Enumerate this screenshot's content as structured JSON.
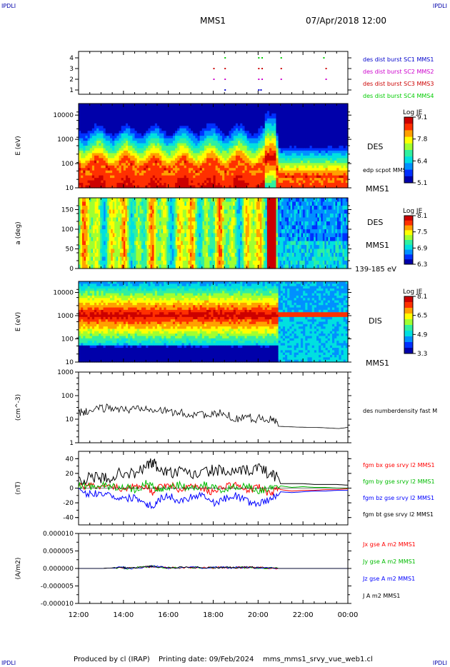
{
  "header": {
    "corner_tl": "IPDLI",
    "corner_tr": "IPDLI",
    "mission": "MMS1",
    "datetime": "07/Apr/2018 12:00"
  },
  "footer": {
    "produced_by": "Produced by cl (IRAP)",
    "printing_date": "Printing date: 09/Feb/2024",
    "product": "mms_mms1_srvy_vue_web1.cl",
    "corner_bl": "IPDLI",
    "corner_br": "IPDLI"
  },
  "colors": {
    "axis": "#000000",
    "spec_scale": [
      "#0000aa",
      "#0030ff",
      "#0090ff",
      "#00e0e0",
      "#30f0a0",
      "#a0ff30",
      "#ffff00",
      "#ffa000",
      "#ff3000",
      "#cc0000"
    ],
    "sc1": "#0000cc",
    "sc2": "#cc00cc",
    "sc3": "#cc0000",
    "sc4": "#00cc00",
    "bx": "#ff0000",
    "by": "#00bb00",
    "bz": "#0000ff",
    "bt": "#000000"
  },
  "chart_data": [
    {
      "panel": "burst",
      "type": "scatter",
      "ylabel": "",
      "yticks": [
        "1",
        "2",
        "3",
        "4"
      ],
      "legend": [
        {
          "label": "des dist burst SC1 MMS1",
          "color": "#0000cc"
        },
        {
          "label": "des dist burst SC2 MMS2",
          "color": "#cc00cc"
        },
        {
          "label": "des dist burst SC3 MMS3",
          "color": "#cc0000"
        },
        {
          "label": "des dist burst SC4 MMS4",
          "color": "#00cc00"
        }
      ],
      "series": [
        {
          "spacecraft": 1,
          "hours": [
            18.5,
            20.0,
            20.1
          ]
        },
        {
          "spacecraft": 2,
          "hours": [
            18.0,
            18.5,
            20.0,
            20.15,
            21.0,
            23.0
          ]
        },
        {
          "spacecraft": 3,
          "hours": [
            18.0,
            18.5,
            20.0,
            20.15,
            21.0,
            23.0
          ]
        },
        {
          "spacecraft": 4,
          "hours": [
            18.5,
            20.0,
            20.15,
            21.0,
            22.9
          ]
        }
      ]
    },
    {
      "panel": "des-energy",
      "type": "heatmap",
      "ylabel": "E (eV)",
      "yticks": [
        "10",
        "100",
        "1000",
        "10000"
      ],
      "scale": "log",
      "ylim": [
        10,
        30000
      ],
      "right_labels": [
        "DES",
        "edp scpot MMS1",
        "MMS1"
      ],
      "colorbar": {
        "title": "Log JE",
        "ticks": [
          "9.1",
          "7.8",
          "6.4",
          "5.1"
        ]
      }
    },
    {
      "panel": "des-pitch",
      "type": "heatmap",
      "ylabel": "a (deg)",
      "yticks": [
        "0",
        "50",
        "100",
        "150"
      ],
      "ylim": [
        0,
        180
      ],
      "right_labels": [
        "DES",
        "MMS1",
        "139-185 eV"
      ],
      "colorbar": {
        "title": "Log JE",
        "ticks": [
          "8.1",
          "7.5",
          "6.9",
          "6.3"
        ]
      }
    },
    {
      "panel": "dis-energy",
      "type": "heatmap",
      "ylabel": "E (eV)",
      "yticks": [
        "10",
        "100",
        "1000",
        "10000"
      ],
      "scale": "log",
      "ylim": [
        10,
        30000
      ],
      "right_labels": [
        "DIS",
        "MMS1"
      ],
      "colorbar": {
        "title": "Log JE",
        "ticks": [
          "8.1",
          "6.5",
          "4.9",
          "3.3"
        ]
      }
    },
    {
      "panel": "density",
      "type": "line",
      "ylabel": "(cm^-3)",
      "yticks": [
        "1",
        "10",
        "100",
        "1000"
      ],
      "scale": "log",
      "ylim": [
        1,
        1000
      ],
      "legend": [
        {
          "label": "des numberdensity fast M",
          "color": "#000000"
        }
      ],
      "hours": [
        12.0,
        12.3,
        12.6,
        13.0,
        13.4,
        13.8,
        14.2,
        14.6,
        15.0,
        15.4,
        15.8,
        16.2,
        16.6,
        17.0,
        17.4,
        17.8,
        18.2,
        18.6,
        19.0,
        19.4,
        19.8,
        20.2,
        20.6,
        20.85,
        20.9,
        21.3,
        21.8,
        22.3,
        22.8,
        23.2,
        23.6,
        24.0
      ],
      "values": [
        18,
        21,
        23,
        28,
        32,
        27,
        24,
        30,
        33,
        28,
        22,
        20,
        18,
        15,
        20,
        12,
        18,
        15,
        10,
        14,
        10,
        12,
        9,
        8,
        5,
        4.8,
        4.6,
        4.5,
        4.4,
        4.2,
        4.0,
        4.5
      ]
    },
    {
      "panel": "magnetic-field",
      "type": "line",
      "ylabel": "(nT)",
      "yticks": [
        "-40",
        "-20",
        "0",
        "20",
        "40"
      ],
      "ylim": [
        -50,
        50
      ],
      "legend": [
        {
          "label": "fgm bx gse srvy l2 MMS1",
          "color": "#ff0000"
        },
        {
          "label": "fgm by gse srvy l2 MMS1",
          "color": "#00bb00"
        },
        {
          "label": "fgm bz gse srvy l2 MMS1",
          "color": "#0000ff"
        },
        {
          "label": "fgm bt gse srvy l2 MMS1",
          "color": "#000000"
        }
      ],
      "hours": [
        12.0,
        12.5,
        13.0,
        13.5,
        14.0,
        14.5,
        15.0,
        15.3,
        15.6,
        16.0,
        16.5,
        17.0,
        17.5,
        18.0,
        18.5,
        19.0,
        19.5,
        20.0,
        20.5,
        20.9,
        21.0,
        21.5,
        22.0,
        22.5,
        23.0,
        23.5,
        24.0
      ],
      "series": [
        {
          "name": "bx",
          "values": [
            2,
            3,
            1,
            4,
            -2,
            5,
            3,
            -5,
            2,
            6,
            -3,
            4,
            1,
            -6,
            3,
            5,
            -4,
            2,
            -8,
            0,
            -2,
            -4,
            -3,
            -3,
            -2,
            -2,
            -1
          ]
        },
        {
          "name": "by",
          "values": [
            4,
            2,
            5,
            1,
            3,
            -4,
            6,
            2,
            -3,
            1,
            4,
            -2,
            5,
            1,
            -3,
            2,
            4,
            -5,
            1,
            0,
            3,
            1,
            2,
            1,
            1,
            0,
            0
          ]
        },
        {
          "name": "bz",
          "values": [
            -5,
            -8,
            -6,
            -10,
            -15,
            -12,
            -20,
            -25,
            -15,
            -10,
            -18,
            -12,
            -8,
            -20,
            -15,
            -10,
            -18,
            -22,
            -15,
            -10,
            -5,
            -6,
            -5,
            -4,
            -4,
            -3,
            -3
          ]
        },
        {
          "name": "bt",
          "values": [
            12,
            14,
            13,
            15,
            22,
            18,
            30,
            35,
            25,
            20,
            22,
            18,
            20,
            25,
            22,
            20,
            24,
            28,
            20,
            15,
            6,
            6,
            6,
            5,
            5,
            5,
            4
          ]
        }
      ]
    },
    {
      "panel": "current-density",
      "type": "line",
      "ylabel": "(A/m2)",
      "yticks": [
        "-0.000010",
        "-0.000005",
        "0.000000",
        "0.000005",
        "0.000010"
      ],
      "ylim": [
        -1e-05,
        1e-05
      ],
      "legend": [
        {
          "label": "Jx gse A m2 MMS1",
          "color": "#ff0000"
        },
        {
          "label": "Jy gse A m2 MMS1",
          "color": "#00bb00"
        },
        {
          "label": "Jz gse A m2 MMS1",
          "color": "#0000ff"
        },
        {
          "label": "J A m2 MMS1",
          "color": "#000000"
        }
      ],
      "hours": [
        12.0,
        13.0,
        14.0,
        14.1,
        15.0,
        15.3,
        16.0,
        17.0,
        18.0,
        18.5,
        19.0,
        19.5,
        20.0,
        21.0,
        22.0,
        23.0,
        24.0
      ],
      "values": [
        0.0,
        0.0,
        3e-07,
        0.0,
        4e-07,
        6e-07,
        2e-07,
        3e-07,
        2e-07,
        3e-07,
        2e-07,
        3e-07,
        2e-07,
        0.0,
        0.0,
        0.0,
        0.0
      ]
    }
  ],
  "time_axis": {
    "ticks": [
      "12:00",
      "14:00",
      "16:00",
      "18:00",
      "20:00",
      "22:00",
      "00:00"
    ]
  }
}
